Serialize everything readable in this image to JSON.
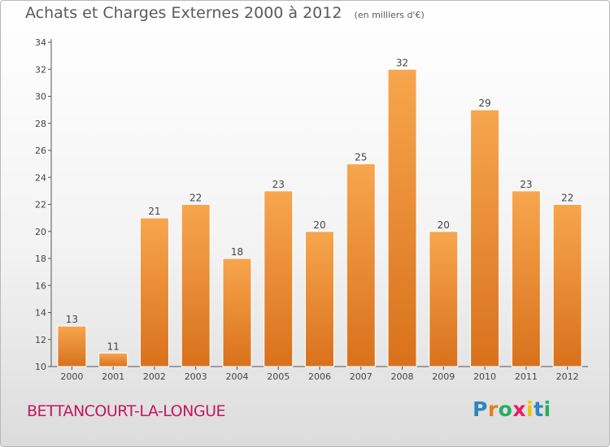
{
  "title": "Achats et Charges Externes 2000 à 2012",
  "unit_label": "(en milliers d'€)",
  "city": "BETTANCOURT-LA-LONGUE",
  "logo_text": "Proxiti",
  "colors": {
    "bar_light": "#f7a64e",
    "bar_dark": "#d9711c",
    "axis": "#555555",
    "text": "#444444"
  },
  "chart_data": {
    "type": "bar",
    "categories": [
      "2000",
      "2001",
      "2002",
      "2003",
      "2004",
      "2005",
      "2006",
      "2007",
      "2008",
      "2009",
      "2010",
      "2011",
      "2012"
    ],
    "values": [
      13,
      11,
      21,
      22,
      18,
      23,
      20,
      25,
      32,
      20,
      29,
      23,
      22
    ],
    "data_labels": [
      "13",
      "11",
      "21",
      "22",
      "18",
      "23",
      "20",
      "25",
      "32",
      "20",
      "29",
      "23",
      "22"
    ],
    "ylim": [
      10,
      34
    ],
    "yticks": [
      10,
      12,
      14,
      16,
      18,
      20,
      22,
      24,
      26,
      28,
      30,
      32,
      34
    ],
    "grid": false,
    "legend": "none"
  }
}
